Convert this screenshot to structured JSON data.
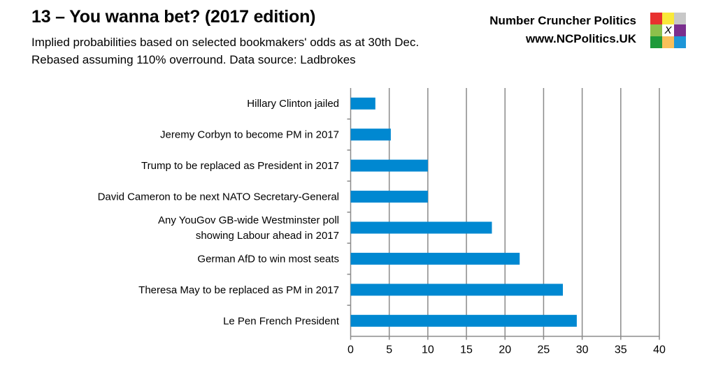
{
  "header": {
    "title": "13 – You wanna bet? (2017 edition)",
    "subtitle": "Implied probabilities based on selected bookmakers' odds as at 30th Dec. Rebased assuming 110% overround. Data source: Ladbrokes",
    "brand_name": "Number Cruncher Politics",
    "brand_url": "www.NCPolitics.UK",
    "logo_mark": "X",
    "logo_colors": [
      "#e8312f",
      "#f9e93a",
      "#c8c8c8",
      "#8cc04b",
      "#ffffff",
      "#7b2f8e",
      "#1e9a3a",
      "#f9c05a",
      "#1e96d8"
    ]
  },
  "chart_data": {
    "type": "bar",
    "orientation": "horizontal",
    "categories": [
      "Hillary Clinton jailed",
      "Jeremy Corbyn to become PM in 2017",
      "Trump to be replaced as President in 2017",
      "David Cameron to be next NATO Secretary-General",
      "Any YouGov GB-wide Westminster poll\nshowing Labour ahead in 2017",
      "German AfD to win most seats",
      "Theresa May to be replaced as PM in 2017",
      "Le Pen French President"
    ],
    "values": [
      3.2,
      5.2,
      10,
      10,
      18.3,
      21.9,
      27.5,
      29.3
    ],
    "xlim": [
      0,
      40
    ],
    "xticks": [
      0,
      5,
      10,
      15,
      20,
      25,
      30,
      35,
      40
    ],
    "grid": "vertical",
    "bar_color": "#0088d1",
    "title": "",
    "xlabel": "",
    "ylabel": ""
  }
}
